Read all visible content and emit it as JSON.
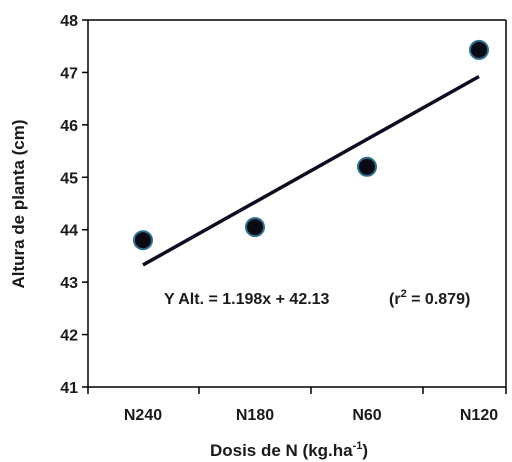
{
  "chart_data": {
    "type": "scatter",
    "title": "",
    "xlabel": "Dosis de N (kg.ha",
    "xlabel_sup": "-1",
    "xlabel_end": ")",
    "ylabel": "Altura de planta (cm)",
    "categories": [
      "N240",
      "N180",
      "N60",
      "N120"
    ],
    "x": [
      1,
      2,
      3,
      4
    ],
    "values": [
      43.8,
      44.05,
      45.2,
      47.43
    ],
    "ylim": [
      41,
      48
    ],
    "yticks": [
      "41",
      "42",
      "43",
      "44",
      "45",
      "46",
      "47",
      "48"
    ],
    "grid": false,
    "trendline": {
      "slope": 1.198,
      "intercept": 42.13,
      "x_start": 1,
      "x_end": 4
    },
    "equation_text": "Y Alt. = 1.198x + 42.13",
    "r2_prefix": "(r",
    "r2_sup": "2",
    "r2_suffix": " = 0.879)",
    "marker_color": "#0a0a14",
    "marker_edge_color": "#2e6f8e",
    "line_color": "#0d0d1f"
  }
}
